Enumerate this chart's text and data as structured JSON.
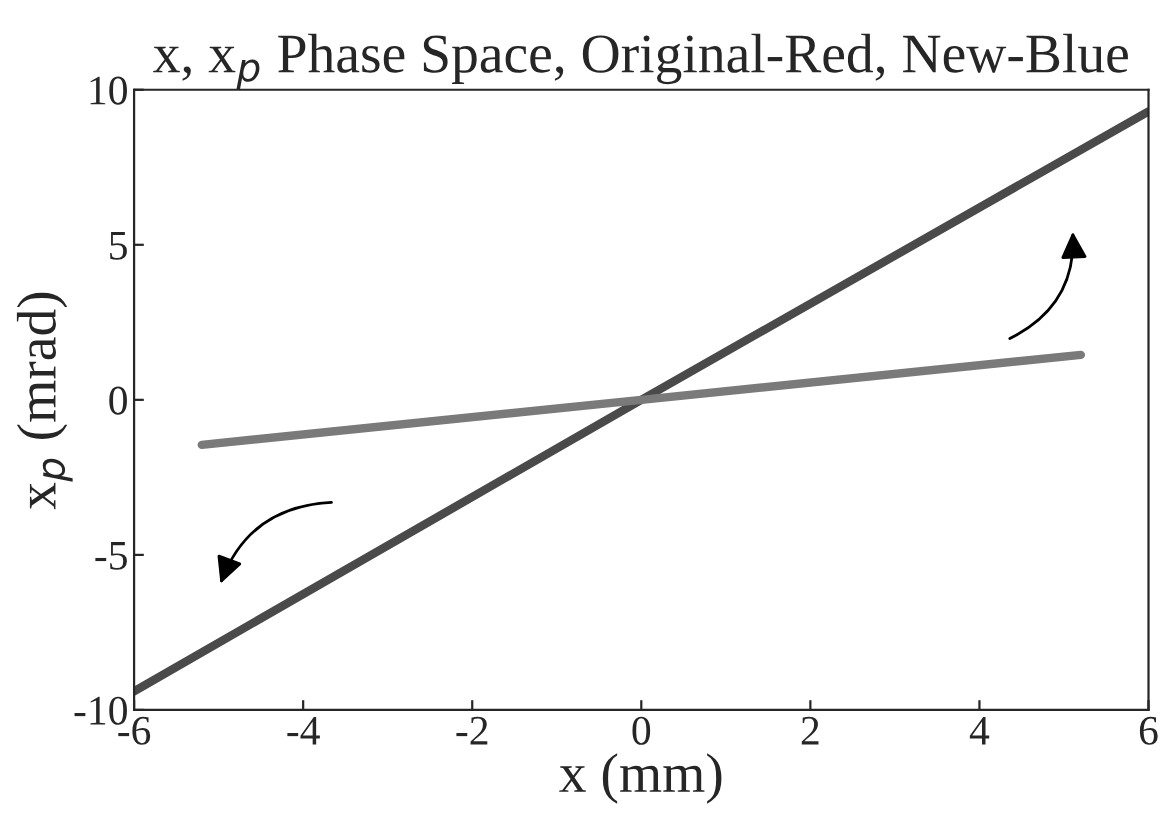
{
  "chart_data": {
    "type": "line",
    "title": "x, x$_{p}$ Phase Space, Original-Red, New-Blue",
    "xlabel": "x (mm)",
    "ylabel": "x$_{p}$ (mrad)",
    "series": [
      {
        "color": "#4a4a4a",
        "x": [
          -6,
          0,
          6
        ],
        "values": [
          -9.4,
          0,
          9.3
        ]
      },
      {
        "color": "#7a7a7a",
        "x": [
          -5.2,
          0,
          5.2
        ],
        "values": [
          -1.45,
          0,
          1.45
        ]
      }
    ],
    "xlim": [
      -6,
      6
    ],
    "xticks": [
      -6,
      -4,
      -2,
      0,
      2,
      4,
      6
    ],
    "ylim": [
      -10,
      10
    ],
    "yticks": [
      -10,
      -5,
      0,
      5,
      10
    ],
    "grid": false,
    "legend": false,
    "line_style": "solid",
    "marker": "none"
  }
}
